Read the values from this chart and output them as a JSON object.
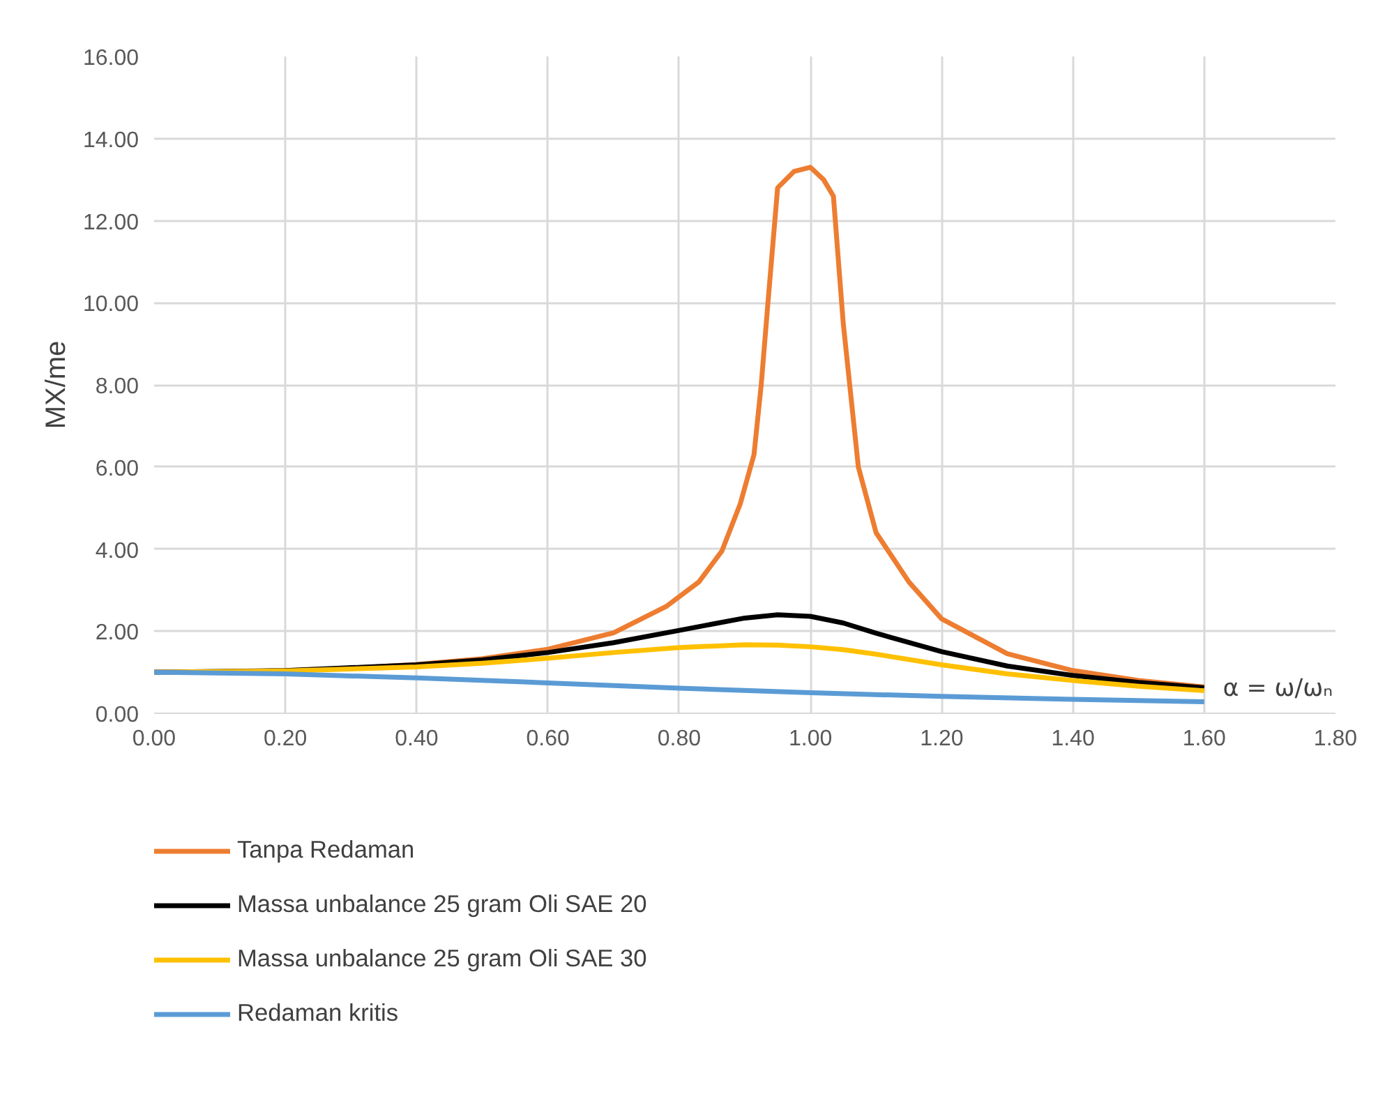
{
  "chart_data": {
    "type": "line",
    "ylabel": "MX/me",
    "xlabel": "α = ω/ωₙ",
    "xlim": [
      0,
      1.8
    ],
    "ylim": [
      0,
      16
    ],
    "xticks": [
      {
        "value": 0,
        "label": "0.00"
      },
      {
        "value": 0.2,
        "label": "0.20"
      },
      {
        "value": 0.4,
        "label": "0.40"
      },
      {
        "value": 0.6,
        "label": "0.60"
      },
      {
        "value": 0.8,
        "label": "0.80"
      },
      {
        "value": 1.0,
        "label": "1.00"
      },
      {
        "value": 1.2,
        "label": "1.20"
      },
      {
        "value": 1.4,
        "label": "1.40"
      },
      {
        "value": 1.6,
        "label": "1.60"
      },
      {
        "value": 1.8,
        "label": "1.80"
      }
    ],
    "yticks": [
      {
        "value": 0,
        "label": "0.00"
      },
      {
        "value": 2,
        "label": "2.00"
      },
      {
        "value": 4,
        "label": "4.00"
      },
      {
        "value": 6,
        "label": "6.00"
      },
      {
        "value": 8,
        "label": "8.00"
      },
      {
        "value": 10,
        "label": "10.00"
      },
      {
        "value": 12,
        "label": "12.00"
      },
      {
        "value": 14,
        "label": "14.00"
      },
      {
        "value": 16,
        "label": "16.00"
      }
    ],
    "grid": true,
    "legend": "bottom",
    "marker": "none",
    "line_style": "solid",
    "series": [
      {
        "name": "Tanpa Redaman",
        "color": "#ed7d31",
        "x": [
          0,
          0.1,
          0.2,
          0.3,
          0.4,
          0.5,
          0.6,
          0.7,
          0.78,
          0.83,
          0.865,
          0.893,
          0.914,
          0.925,
          0.935,
          0.95,
          0.975,
          1.0,
          1.02,
          1.035,
          1.05,
          1.073,
          1.1,
          1.15,
          1.2,
          1.3,
          1.4,
          1.5,
          1.6
        ],
        "values": [
          1.0,
          1.01,
          1.04,
          1.1,
          1.19,
          1.33,
          1.56,
          1.96,
          2.6,
          3.2,
          3.95,
          5.1,
          6.3,
          8.0,
          9.95,
          12.8,
          13.2,
          13.3,
          13.0,
          12.6,
          9.5,
          6.0,
          4.4,
          3.2,
          2.3,
          1.45,
          1.04,
          0.8,
          0.64
        ]
      },
      {
        "name": "Massa unbalance 25 gram Oli SAE 20",
        "color": "#000000",
        "x": [
          0,
          0.2,
          0.4,
          0.5,
          0.6,
          0.7,
          0.8,
          0.9,
          0.95,
          1.0,
          1.05,
          1.1,
          1.2,
          1.3,
          1.4,
          1.5,
          1.6
        ],
        "values": [
          1.0,
          1.04,
          1.18,
          1.3,
          1.48,
          1.72,
          2.02,
          2.32,
          2.4,
          2.36,
          2.2,
          1.95,
          1.5,
          1.15,
          0.92,
          0.75,
          0.62
        ]
      },
      {
        "name": "Massa unbalance 25 gram Oli SAE 30",
        "color": "#ffc000",
        "x": [
          0,
          0.2,
          0.4,
          0.5,
          0.6,
          0.7,
          0.8,
          0.9,
          0.95,
          1.0,
          1.05,
          1.1,
          1.2,
          1.3,
          1.4,
          1.5,
          1.6
        ],
        "values": [
          1.0,
          1.03,
          1.13,
          1.22,
          1.34,
          1.48,
          1.6,
          1.67,
          1.66,
          1.62,
          1.55,
          1.44,
          1.18,
          0.96,
          0.8,
          0.66,
          0.55
        ]
      },
      {
        "name": "Redaman kritis",
        "color": "#5b9bd5",
        "x": [
          0,
          0.2,
          0.4,
          0.6,
          0.8,
          1.0,
          1.2,
          1.4,
          1.6
        ],
        "values": [
          1.0,
          0.96,
          0.86,
          0.74,
          0.61,
          0.5,
          0.41,
          0.34,
          0.28
        ]
      }
    ]
  }
}
